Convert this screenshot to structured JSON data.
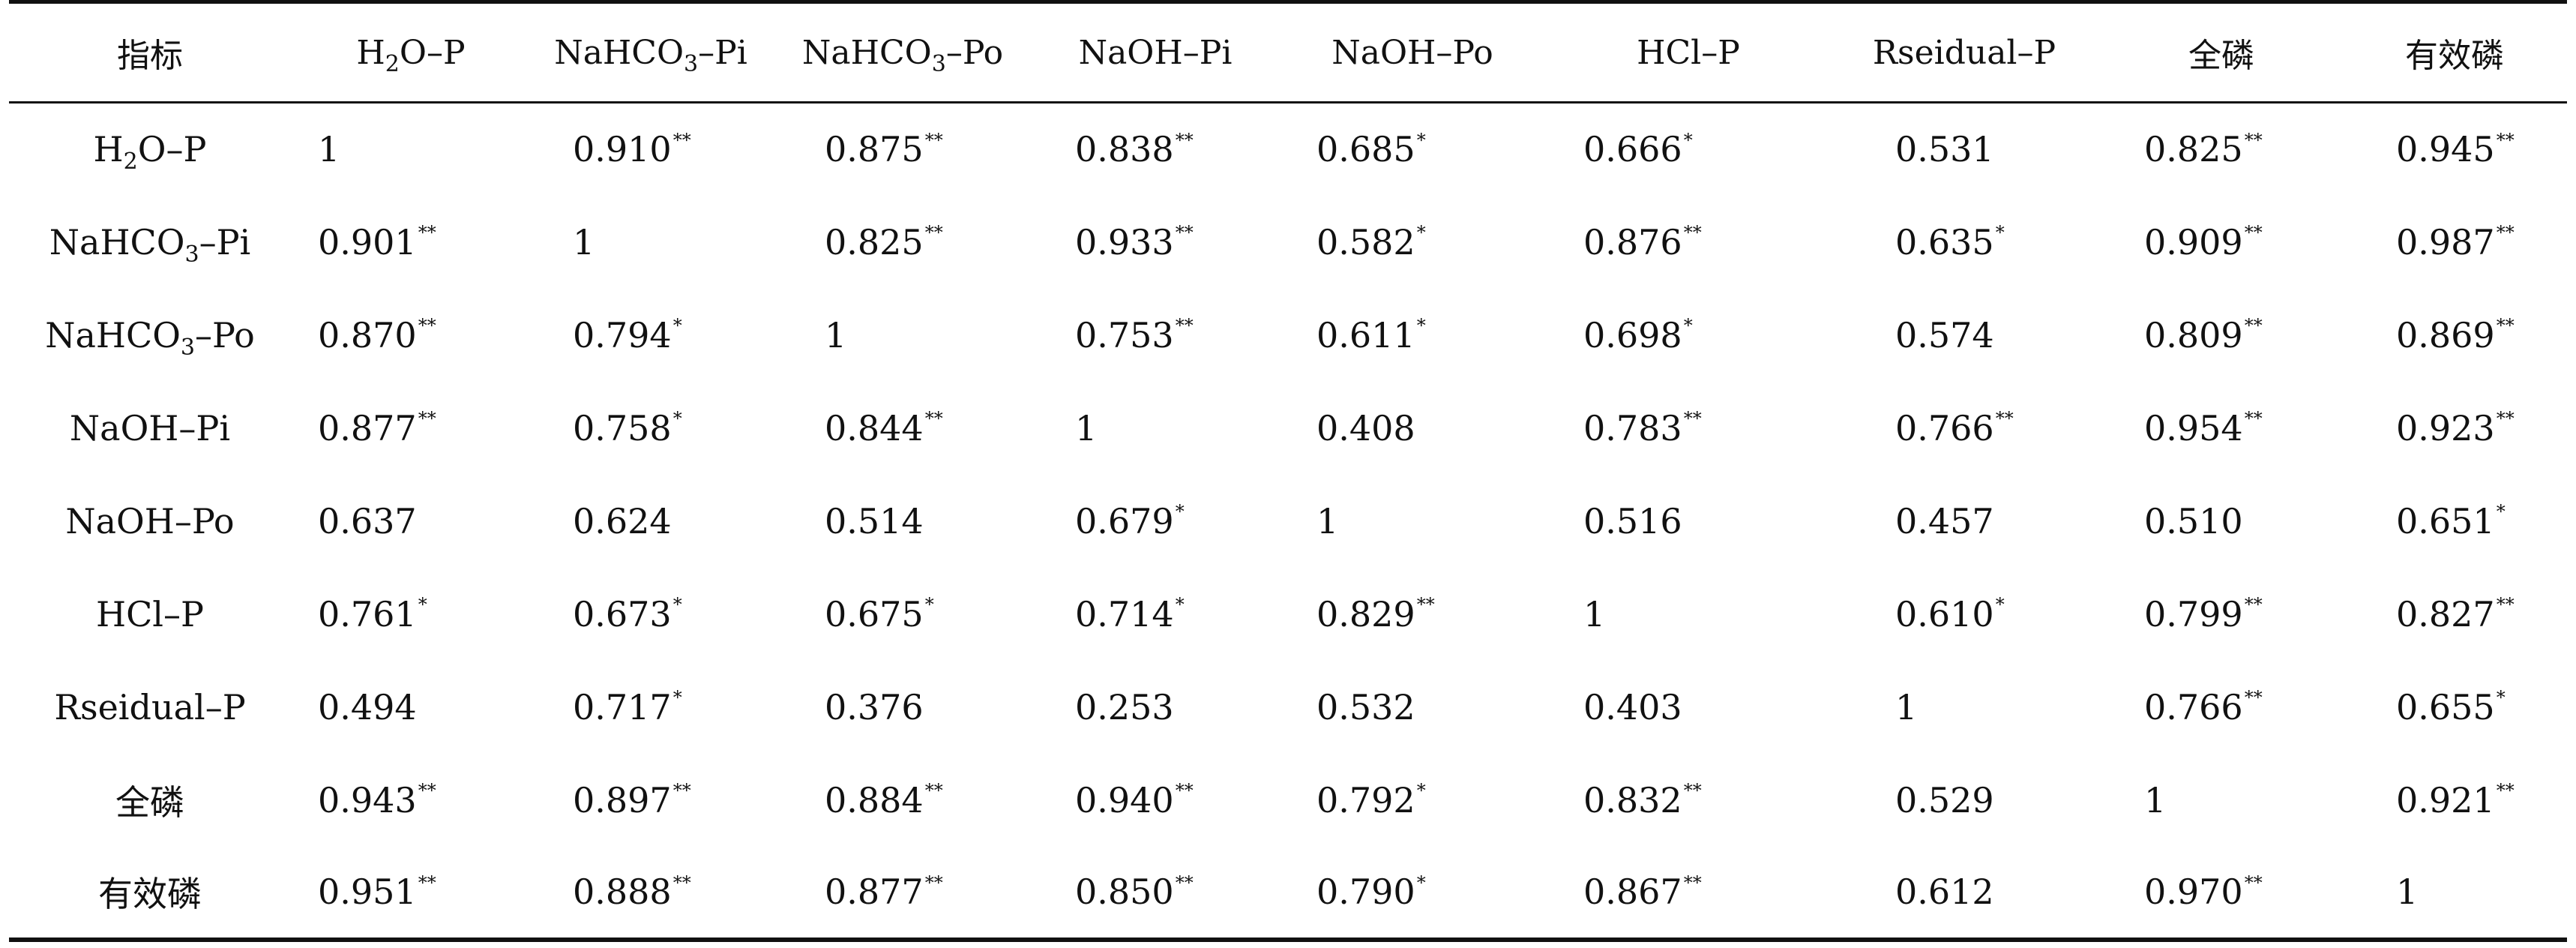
{
  "header": {
    "corner": "指标",
    "columns": [
      {
        "pre": "H",
        "sub": "2",
        "post": "O–P"
      },
      {
        "pre": "NaHCO",
        "sub": "3",
        "post": "–Pi"
      },
      {
        "pre": "NaHCO",
        "sub": "3",
        "post": "–Po"
      },
      {
        "pre": "NaOH–Pi",
        "sub": "",
        "post": ""
      },
      {
        "pre": "NaOH–Po",
        "sub": "",
        "post": ""
      },
      {
        "pre": "HCl–P",
        "sub": "",
        "post": ""
      },
      {
        "pre": "Rseidual–P",
        "sub": "",
        "post": ""
      },
      {
        "pre": "全磷",
        "sub": "",
        "post": ""
      },
      {
        "pre": "有效磷",
        "sub": "",
        "post": ""
      }
    ]
  },
  "rows": [
    {
      "label": {
        "pre": "H",
        "sub": "2",
        "post": "O–P"
      },
      "cells": [
        {
          "value": "1",
          "sig": ""
        },
        {
          "value": "0.910",
          "sig": "**"
        },
        {
          "value": "0.875",
          "sig": "**"
        },
        {
          "value": "0.838",
          "sig": "**"
        },
        {
          "value": "0.685",
          "sig": "*"
        },
        {
          "value": "0.666",
          "sig": "*"
        },
        {
          "value": "0.531",
          "sig": ""
        },
        {
          "value": "0.825",
          "sig": "**"
        },
        {
          "value": "0.945",
          "sig": "**"
        }
      ]
    },
    {
      "label": {
        "pre": "NaHCO",
        "sub": "3",
        "post": "–Pi"
      },
      "cells": [
        {
          "value": "0.901",
          "sig": "**"
        },
        {
          "value": "1",
          "sig": ""
        },
        {
          "value": "0.825",
          "sig": "**"
        },
        {
          "value": "0.933",
          "sig": "**"
        },
        {
          "value": "0.582",
          "sig": "*"
        },
        {
          "value": "0.876",
          "sig": "**"
        },
        {
          "value": "0.635",
          "sig": "*"
        },
        {
          "value": "0.909",
          "sig": "**"
        },
        {
          "value": "0.987",
          "sig": "**"
        }
      ]
    },
    {
      "label": {
        "pre": "NaHCO",
        "sub": "3",
        "post": "–Po"
      },
      "cells": [
        {
          "value": "0.870",
          "sig": "**"
        },
        {
          "value": "0.794",
          "sig": "*"
        },
        {
          "value": "1",
          "sig": ""
        },
        {
          "value": "0.753",
          "sig": "**"
        },
        {
          "value": "0.611",
          "sig": "*"
        },
        {
          "value": "0.698",
          "sig": "*"
        },
        {
          "value": "0.574",
          "sig": ""
        },
        {
          "value": "0.809",
          "sig": "**"
        },
        {
          "value": "0.869",
          "sig": "**"
        }
      ]
    },
    {
      "label": {
        "pre": "NaOH–Pi",
        "sub": "",
        "post": ""
      },
      "cells": [
        {
          "value": "0.877",
          "sig": "**"
        },
        {
          "value": "0.758",
          "sig": "*"
        },
        {
          "value": "0.844",
          "sig": "**"
        },
        {
          "value": "1",
          "sig": ""
        },
        {
          "value": "0.408",
          "sig": ""
        },
        {
          "value": "0.783",
          "sig": "**"
        },
        {
          "value": "0.766",
          "sig": "**"
        },
        {
          "value": "0.954",
          "sig": "**"
        },
        {
          "value": "0.923",
          "sig": "**"
        }
      ]
    },
    {
      "label": {
        "pre": "NaOH–Po",
        "sub": "",
        "post": ""
      },
      "cells": [
        {
          "value": "0.637",
          "sig": ""
        },
        {
          "value": "0.624",
          "sig": ""
        },
        {
          "value": "0.514",
          "sig": ""
        },
        {
          "value": "0.679",
          "sig": "*"
        },
        {
          "value": "1",
          "sig": ""
        },
        {
          "value": "0.516",
          "sig": ""
        },
        {
          "value": "0.457",
          "sig": ""
        },
        {
          "value": "0.510",
          "sig": ""
        },
        {
          "value": "0.651",
          "sig": "*"
        }
      ]
    },
    {
      "label": {
        "pre": "HCl–P",
        "sub": "",
        "post": ""
      },
      "cells": [
        {
          "value": "0.761",
          "sig": "*"
        },
        {
          "value": "0.673",
          "sig": "*"
        },
        {
          "value": "0.675",
          "sig": "*"
        },
        {
          "value": "0.714",
          "sig": "*"
        },
        {
          "value": "0.829",
          "sig": "**"
        },
        {
          "value": "1",
          "sig": ""
        },
        {
          "value": "0.610",
          "sig": "*"
        },
        {
          "value": "0.799",
          "sig": "**"
        },
        {
          "value": "0.827",
          "sig": "**"
        }
      ]
    },
    {
      "label": {
        "pre": "Rseidual–P",
        "sub": "",
        "post": ""
      },
      "cells": [
        {
          "value": "0.494",
          "sig": ""
        },
        {
          "value": "0.717",
          "sig": "*"
        },
        {
          "value": "0.376",
          "sig": ""
        },
        {
          "value": "0.253",
          "sig": ""
        },
        {
          "value": "0.532",
          "sig": ""
        },
        {
          "value": "0.403",
          "sig": ""
        },
        {
          "value": "1",
          "sig": ""
        },
        {
          "value": "0.766",
          "sig": "**"
        },
        {
          "value": "0.655",
          "sig": "*"
        }
      ]
    },
    {
      "label": {
        "pre": "全磷",
        "sub": "",
        "post": ""
      },
      "cells": [
        {
          "value": "0.943",
          "sig": "**"
        },
        {
          "value": "0.897",
          "sig": "**"
        },
        {
          "value": "0.884",
          "sig": "**"
        },
        {
          "value": "0.940",
          "sig": "**"
        },
        {
          "value": "0.792",
          "sig": "*"
        },
        {
          "value": "0.832",
          "sig": "**"
        },
        {
          "value": "0.529",
          "sig": ""
        },
        {
          "value": "1",
          "sig": ""
        },
        {
          "value": "0.921",
          "sig": "**"
        }
      ]
    },
    {
      "label": {
        "pre": "有效磷",
        "sub": "",
        "post": ""
      },
      "cells": [
        {
          "value": "0.951",
          "sig": "**"
        },
        {
          "value": "0.888",
          "sig": "**"
        },
        {
          "value": "0.877",
          "sig": "**"
        },
        {
          "value": "0.850",
          "sig": "**"
        },
        {
          "value": "0.790",
          "sig": "*"
        },
        {
          "value": "0.867",
          "sig": "**"
        },
        {
          "value": "0.612",
          "sig": ""
        },
        {
          "value": "0.970",
          "sig": "**"
        },
        {
          "value": "1",
          "sig": ""
        }
      ]
    }
  ]
}
